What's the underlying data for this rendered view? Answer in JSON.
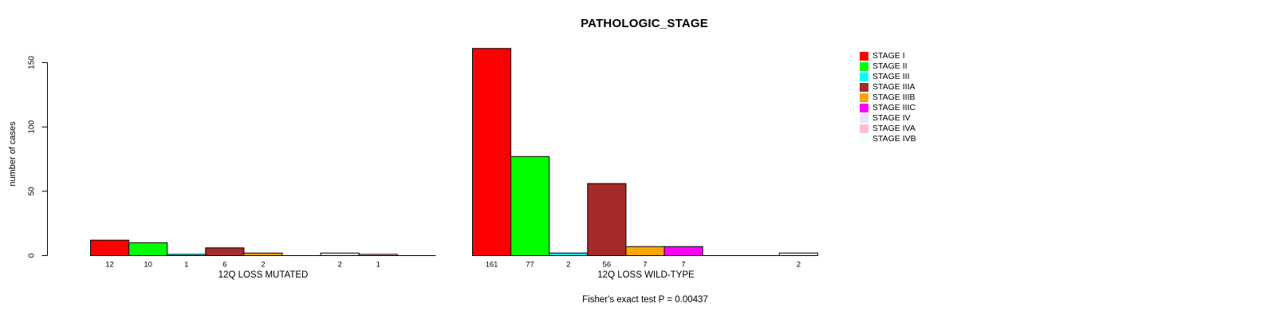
{
  "chart_data": {
    "type": "bar",
    "title": "PATHOLOGIC_STAGE",
    "ylabel": "number of cases",
    "xlabel": "",
    "yticks": [
      0,
      50,
      100,
      150
    ],
    "ylim": [
      0,
      161
    ],
    "grid": false,
    "bar_borders": true,
    "legend_position": "right",
    "categories": [
      "STAGE I",
      "STAGE II",
      "STAGE III",
      "STAGE IIIA",
      "STAGE IIIB",
      "STAGE IIIC",
      "STAGE IV",
      "STAGE IVA",
      "STAGE IVB"
    ],
    "colors": [
      "#FF0000",
      "#00FF00",
      "#00FFFF",
      "#A52A2A",
      "#FFA500",
      "#FF00FF",
      "#E6E6FA",
      "#FFC0CB",
      "#F0FFFF"
    ],
    "groups": [
      {
        "label": "12Q LOSS MUTATED",
        "values": [
          12,
          10,
          1,
          6,
          2,
          0,
          2,
          1,
          0
        ]
      },
      {
        "label": "12Q LOSS WILD-TYPE",
        "values": [
          161,
          77,
          2,
          56,
          7,
          7,
          0,
          0,
          2
        ]
      }
    ],
    "footer": "Fisher's exact test P = 0.00437",
    "axis_color": "#000000",
    "text_color": "#000000"
  }
}
